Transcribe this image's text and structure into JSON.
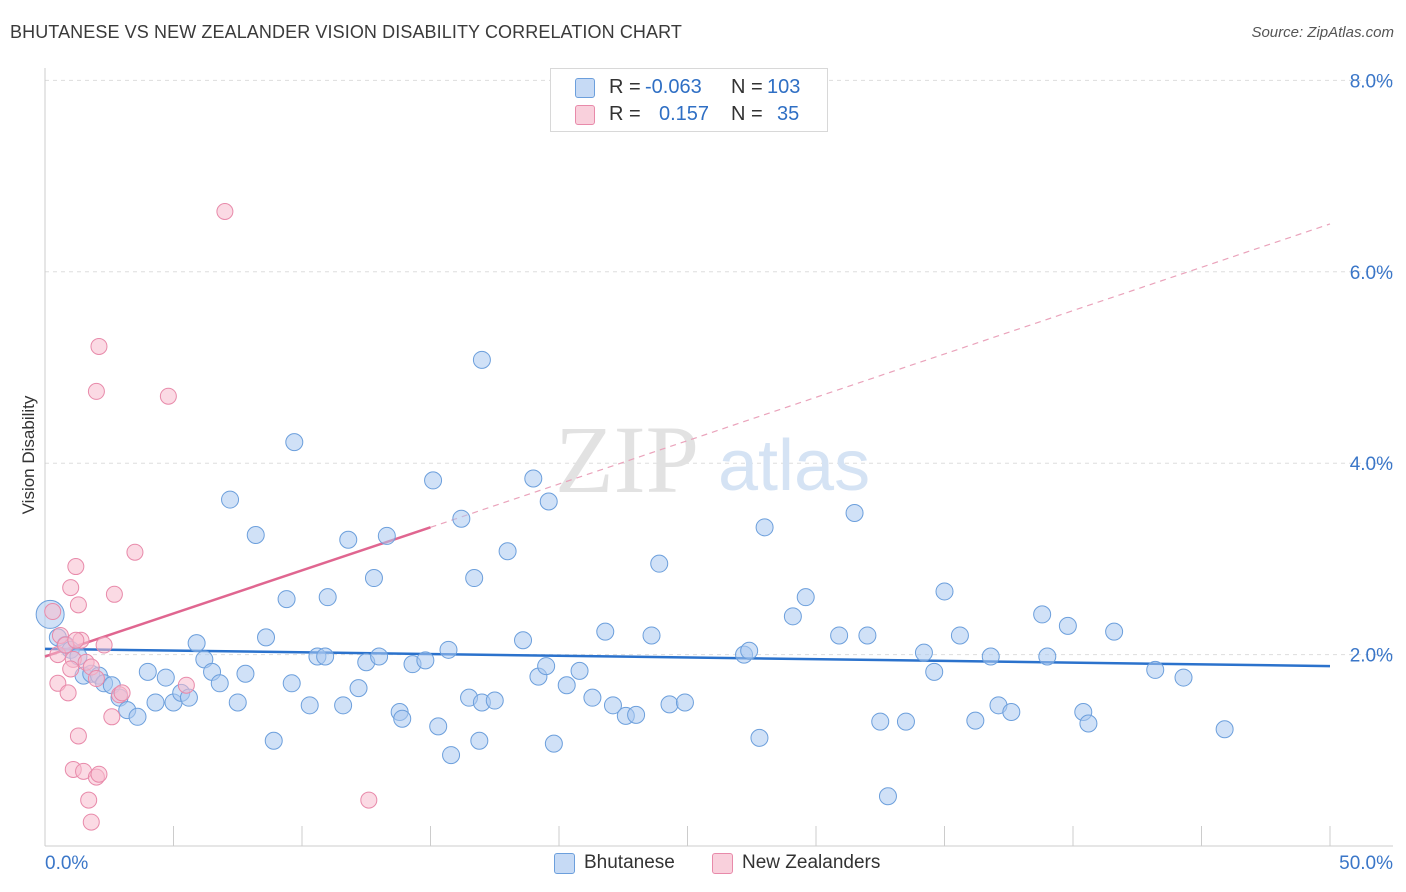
{
  "header": {
    "title": "BHUTANESE VS NEW ZEALANDER VISION DISABILITY CORRELATION CHART",
    "source": "Source: ZipAtlas.com"
  },
  "watermark": {
    "zip": "ZIP",
    "atlas": "atlas"
  },
  "legend": {
    "rows": [
      {
        "r_label": "R =",
        "r_value": "-0.063",
        "n_label": "N =",
        "n_value": "103"
      },
      {
        "r_label": "R =",
        "r_value": "0.157",
        "n_label": "N =",
        "n_value": "35"
      }
    ]
  },
  "colors": {
    "blue_fill": "#aac8f0",
    "blue_stroke": "#6c9fdc",
    "blue_line": "#2b72cc",
    "pink_fill": "#f7bccd",
    "pink_stroke": "#e88aaa",
    "pink_line": "#e06690",
    "axis_label": "#3a76c8",
    "grid": "#dddddd"
  },
  "chart_data": {
    "type": "scatter",
    "title": "BHUTANESE VS NEW ZEALANDER VISION DISABILITY CORRELATION CHART",
    "xlabel": "",
    "ylabel": "Vision Disability",
    "xlim": [
      0,
      50
    ],
    "ylim": [
      0,
      8.3
    ],
    "x_tick_labels": [
      "0.0%",
      "50.0%"
    ],
    "y_ticks": [
      2,
      4,
      6,
      8
    ],
    "y_tick_labels": [
      "2.0%",
      "4.0%",
      "6.0%",
      "8.0%"
    ],
    "legend_position": "bottom",
    "series": [
      {
        "name": "Bhutanese",
        "r": -0.063,
        "n": 103,
        "trend": {
          "x": [
            0,
            50
          ],
          "y": [
            2.06,
            1.88
          ]
        },
        "points": [
          [
            0.2,
            2.42
          ],
          [
            0.5,
            2.18
          ],
          [
            0.8,
            2.1
          ],
          [
            1.0,
            2.05
          ],
          [
            1.3,
            1.98
          ],
          [
            1.5,
            1.78
          ],
          [
            1.8,
            1.8
          ],
          [
            2.1,
            1.78
          ],
          [
            2.3,
            1.7
          ],
          [
            2.6,
            1.68
          ],
          [
            2.9,
            1.55
          ],
          [
            3.2,
            1.42
          ],
          [
            3.6,
            1.35
          ],
          [
            4.0,
            1.82
          ],
          [
            4.3,
            1.5
          ],
          [
            4.7,
            1.76
          ],
          [
            5.0,
            1.5
          ],
          [
            5.3,
            1.6
          ],
          [
            5.6,
            1.55
          ],
          [
            5.9,
            2.12
          ],
          [
            6.2,
            1.95
          ],
          [
            6.5,
            1.82
          ],
          [
            6.8,
            1.7
          ],
          [
            7.2,
            3.62
          ],
          [
            7.5,
            1.5
          ],
          [
            7.8,
            1.8
          ],
          [
            8.2,
            3.25
          ],
          [
            8.6,
            2.18
          ],
          [
            8.9,
            1.1
          ],
          [
            9.4,
            2.58
          ],
          [
            9.6,
            1.7
          ],
          [
            9.7,
            4.22
          ],
          [
            10.3,
            1.47
          ],
          [
            10.6,
            1.98
          ],
          [
            10.9,
            1.98
          ],
          [
            11.0,
            2.6
          ],
          [
            11.6,
            1.47
          ],
          [
            11.8,
            3.2
          ],
          [
            12.2,
            1.65
          ],
          [
            12.5,
            1.92
          ],
          [
            12.8,
            2.8
          ],
          [
            13.0,
            1.98
          ],
          [
            13.3,
            3.24
          ],
          [
            13.8,
            1.4
          ],
          [
            13.9,
            1.33
          ],
          [
            14.3,
            1.9
          ],
          [
            14.8,
            1.94
          ],
          [
            15.1,
            3.82
          ],
          [
            15.3,
            1.25
          ],
          [
            15.7,
            2.05
          ],
          [
            15.8,
            0.95
          ],
          [
            16.2,
            3.42
          ],
          [
            16.5,
            1.55
          ],
          [
            16.7,
            2.8
          ],
          [
            16.9,
            1.1
          ],
          [
            17.0,
            1.5
          ],
          [
            17.0,
            5.08
          ],
          [
            17.5,
            1.52
          ],
          [
            18.0,
            3.08
          ],
          [
            18.6,
            2.15
          ],
          [
            19.0,
            3.84
          ],
          [
            19.2,
            1.77
          ],
          [
            19.5,
            1.88
          ],
          [
            19.6,
            3.6
          ],
          [
            19.8,
            1.07
          ],
          [
            20.3,
            1.68
          ],
          [
            20.8,
            1.83
          ],
          [
            21.3,
            1.55
          ],
          [
            21.8,
            2.24
          ],
          [
            22.1,
            1.47
          ],
          [
            22.6,
            1.36
          ],
          [
            23.0,
            1.37
          ],
          [
            23.6,
            2.2
          ],
          [
            23.9,
            2.95
          ],
          [
            24.3,
            1.48
          ],
          [
            24.9,
            1.5
          ],
          [
            27.2,
            2.0
          ],
          [
            27.4,
            2.04
          ],
          [
            27.8,
            1.13
          ],
          [
            28.0,
            3.33
          ],
          [
            29.1,
            2.4
          ],
          [
            29.6,
            2.6
          ],
          [
            30.9,
            2.2
          ],
          [
            31.5,
            3.48
          ],
          [
            32.0,
            2.2
          ],
          [
            32.5,
            1.3
          ],
          [
            32.8,
            0.52
          ],
          [
            33.5,
            1.3
          ],
          [
            34.2,
            2.02
          ],
          [
            34.6,
            1.82
          ],
          [
            35.0,
            2.66
          ],
          [
            35.6,
            2.2
          ],
          [
            36.2,
            1.31
          ],
          [
            36.8,
            1.98
          ],
          [
            37.1,
            1.47
          ],
          [
            37.6,
            1.4
          ],
          [
            38.8,
            2.42
          ],
          [
            39.0,
            1.98
          ],
          [
            39.8,
            2.3
          ],
          [
            40.4,
            1.4
          ],
          [
            40.6,
            1.28
          ],
          [
            41.6,
            2.24
          ],
          [
            43.2,
            1.84
          ],
          [
            44.3,
            1.76
          ],
          [
            45.9,
            1.22
          ]
        ]
      },
      {
        "name": "New Zealanders",
        "r": 0.157,
        "n": 35,
        "trend": {
          "x": [
            0,
            15
          ],
          "y": [
            1.98,
            3.33
          ],
          "extended": {
            "x": [
              15,
              50
            ],
            "y": [
              3.33,
              6.5
            ]
          }
        },
        "points": [
          [
            0.3,
            2.45
          ],
          [
            0.5,
            2.0
          ],
          [
            0.6,
            2.2
          ],
          [
            0.8,
            2.1
          ],
          [
            1.1,
            1.95
          ],
          [
            1.3,
            2.52
          ],
          [
            0.5,
            1.7
          ],
          [
            0.9,
            1.6
          ],
          [
            1.2,
            2.92
          ],
          [
            1.4,
            2.15
          ],
          [
            1.6,
            1.92
          ],
          [
            1.8,
            1.87
          ],
          [
            2.0,
            1.75
          ],
          [
            2.3,
            2.1
          ],
          [
            2.6,
            1.35
          ],
          [
            2.9,
            1.58
          ],
          [
            1.0,
            1.85
          ],
          [
            1.0,
            2.7
          ],
          [
            1.2,
            2.15
          ],
          [
            1.1,
            0.8
          ],
          [
            1.3,
            1.15
          ],
          [
            1.5,
            0.78
          ],
          [
            1.7,
            0.48
          ],
          [
            1.8,
            0.25
          ],
          [
            2.0,
            0.72
          ],
          [
            2.1,
            0.75
          ],
          [
            2.0,
            4.75
          ],
          [
            2.1,
            5.22
          ],
          [
            2.7,
            2.63
          ],
          [
            3.0,
            1.6
          ],
          [
            3.5,
            3.07
          ],
          [
            4.8,
            4.7
          ],
          [
            5.5,
            1.68
          ],
          [
            7.0,
            6.63
          ],
          [
            12.6,
            0.48
          ]
        ]
      }
    ]
  }
}
